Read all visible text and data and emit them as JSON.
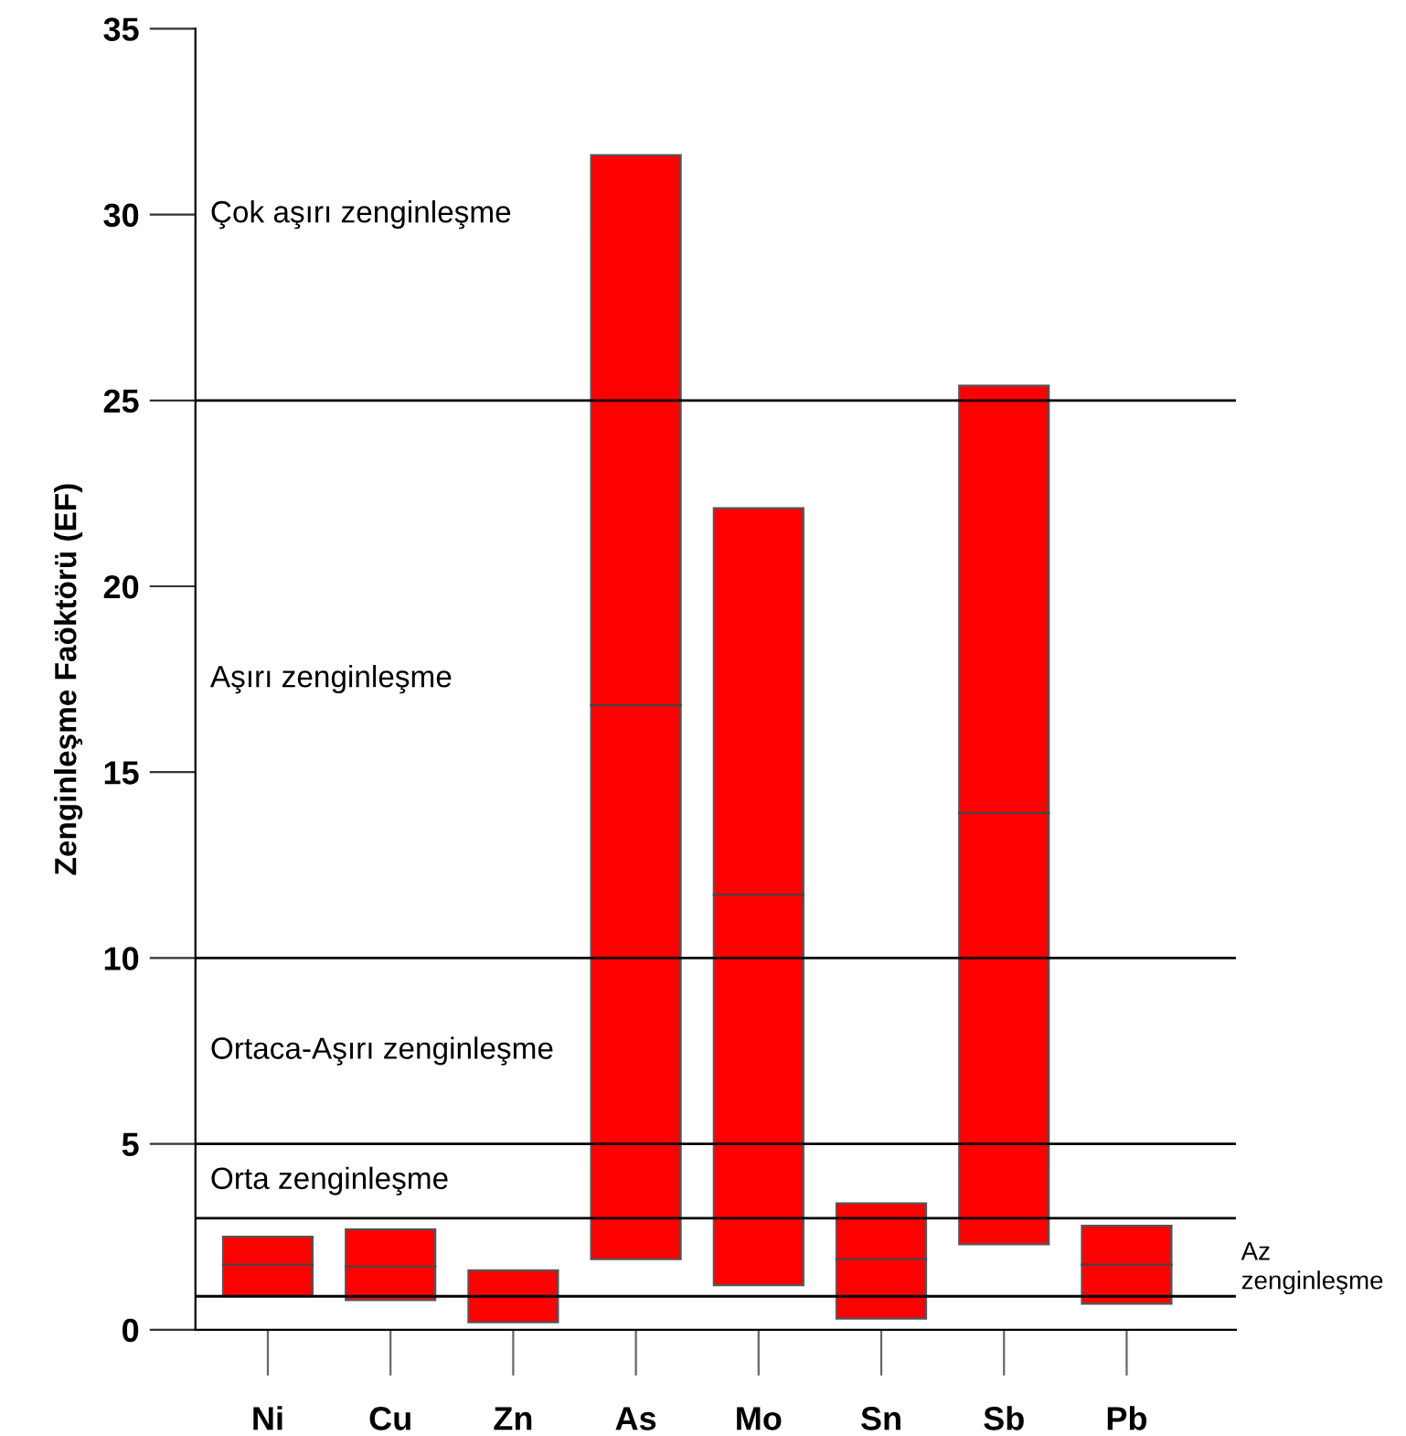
{
  "chart_data": {
    "type": "box",
    "ylabel": "Zenginleşme Faöktörü (EF)",
    "categories": [
      "Ni",
      "Cu",
      "Zn",
      "As",
      "Mo",
      "Sn",
      "Sb",
      "Pb"
    ],
    "color": "#ff0000",
    "boxes": [
      {
        "low": 0.9,
        "q1": 0.9,
        "median": 1.75,
        "q3": 2.5,
        "high": 2.5
      },
      {
        "low": 0.8,
        "q1": 0.8,
        "median": 1.7,
        "q3": 2.7,
        "high": 2.7
      },
      {
        "low": 0.2,
        "q1": 0.2,
        "median": 0.9,
        "q3": 1.6,
        "high": 1.6
      },
      {
        "low": 1.9,
        "q1": 1.9,
        "median": 16.8,
        "q3": 31.6,
        "high": 31.6
      },
      {
        "low": 1.2,
        "q1": 1.2,
        "median": 11.7,
        "q3": 22.1,
        "high": 22.1
      },
      {
        "low": 0.3,
        "q1": 0.3,
        "median": 1.9,
        "q3": 3.4,
        "high": 3.4
      },
      {
        "low": 2.3,
        "q1": 2.3,
        "median": 13.9,
        "q3": 25.4,
        "high": 25.4
      },
      {
        "low": 0.7,
        "q1": 0.7,
        "median": 1.75,
        "q3": 2.8,
        "high": 2.8
      }
    ],
    "ylim": [
      0,
      35
    ],
    "yticks": [
      0,
      5,
      10,
      15,
      20,
      25,
      30,
      35
    ],
    "ref_lines": [
      {
        "axis": "y",
        "value": 0.9,
        "color": "#000000"
      },
      {
        "axis": "y",
        "value": 3,
        "color": "#000000"
      },
      {
        "axis": "y",
        "value": 5,
        "color": "#000000"
      },
      {
        "axis": "y",
        "value": 10,
        "color": "#000000"
      },
      {
        "axis": "y",
        "value": 25,
        "color": "#000000"
      }
    ],
    "annotations": [
      "Az\nzenginleşme",
      "Orta zenginleşme",
      "Ortaca-Aşırı zenginleşme",
      "Aşırı zenginleşme",
      "Çok aşırı zenginleşme"
    ],
    "grid": false,
    "legend": false
  }
}
